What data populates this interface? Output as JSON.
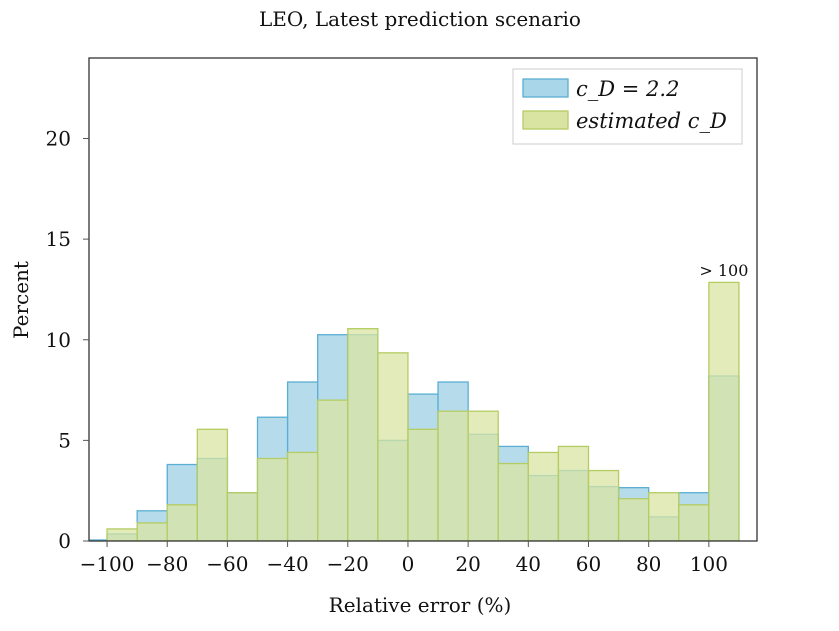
{
  "chart_data": {
    "type": "bar",
    "title": "LEO, Latest prediction scenario",
    "xlabel": "Relative error (%)",
    "ylabel": "Percent",
    "xlim": [
      -106,
      116
    ],
    "ylim": [
      0,
      24
    ],
    "xticks": [
      -100,
      -80,
      -60,
      -40,
      -20,
      0,
      20,
      40,
      60,
      80,
      100
    ],
    "xtick_labels": [
      "−100",
      "−80",
      "−60",
      "−40",
      "−20",
      "0",
      "20",
      "40",
      "60",
      "80",
      "100"
    ],
    "yticks": [
      0,
      5,
      10,
      15,
      20
    ],
    "ytick_labels": [
      "0",
      "5",
      "10",
      "15",
      "20"
    ],
    "grid": false,
    "legend_position": "top-right",
    "bin_edges": [
      -110,
      -100,
      -90,
      -80,
      -70,
      -60,
      -50,
      -40,
      -30,
      -20,
      -10,
      0,
      10,
      20,
      30,
      40,
      50,
      60,
      70,
      80,
      90,
      100,
      110
    ],
    "series": [
      {
        "name": "c_D = 2.2",
        "color": "#6bb7d9",
        "values": [
          0.05,
          0.35,
          1.5,
          3.8,
          4.1,
          2.4,
          6.15,
          7.9,
          10.25,
          10.25,
          5.0,
          7.3,
          7.9,
          5.3,
          4.7,
          3.25,
          3.5,
          2.7,
          2.65,
          1.2,
          2.4,
          8.2
        ]
      },
      {
        "name": "estimated c_D",
        "color": "#c3d57a",
        "values": [
          0,
          0.6,
          0.9,
          1.8,
          5.55,
          2.4,
          4.1,
          4.4,
          7.0,
          10.55,
          9.35,
          5.55,
          6.45,
          6.45,
          3.85,
          4.4,
          4.7,
          3.5,
          2.1,
          2.4,
          1.8,
          12.85
        ]
      }
    ],
    "annotations": [
      {
        "text": "> 100",
        "x": 105
      }
    ]
  }
}
